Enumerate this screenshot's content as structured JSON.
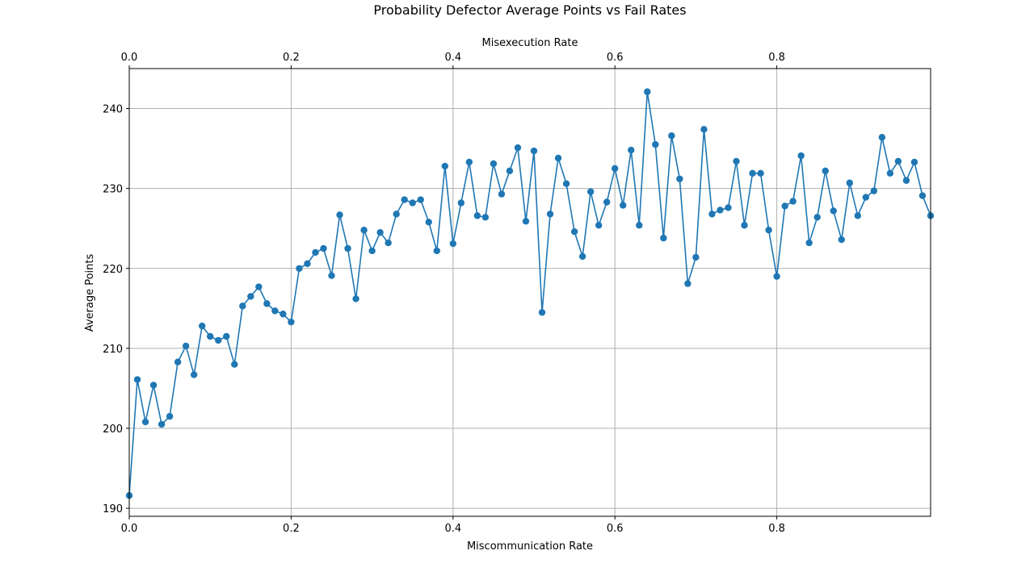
{
  "chart_data": {
    "type": "line",
    "title": "Probability Defector Average Points vs Fail Rates",
    "xlabel": "Miscommunication Rate",
    "x2label": "Misexecution Rate",
    "ylabel": "Average Points",
    "xlim": [
      0,
      0.99
    ],
    "ylim": [
      189,
      245
    ],
    "xticks": [
      "0.0",
      "0.2",
      "0.4",
      "0.6",
      "0.8"
    ],
    "x2ticks": [
      "0.0",
      "0.2",
      "0.4",
      "0.6",
      "0.8"
    ],
    "yticks": [
      "190",
      "200",
      "210",
      "220",
      "230",
      "240"
    ],
    "grid": true,
    "markers": true,
    "color": "#1f77b4",
    "x": [
      0.0,
      0.01,
      0.02,
      0.03,
      0.04,
      0.05,
      0.06,
      0.07,
      0.08,
      0.09,
      0.1,
      0.11,
      0.12,
      0.13,
      0.14,
      0.15,
      0.16,
      0.17,
      0.18,
      0.19,
      0.2,
      0.21,
      0.22,
      0.23,
      0.24,
      0.25,
      0.26,
      0.27,
      0.28,
      0.29,
      0.3,
      0.31,
      0.32,
      0.33,
      0.34,
      0.35,
      0.36,
      0.37,
      0.38,
      0.39,
      0.4,
      0.41,
      0.42,
      0.43,
      0.44,
      0.45,
      0.46,
      0.47,
      0.48,
      0.49,
      0.5,
      0.51,
      0.52,
      0.53,
      0.54,
      0.55,
      0.56,
      0.57,
      0.58,
      0.59,
      0.6,
      0.61,
      0.62,
      0.63,
      0.64,
      0.65,
      0.66,
      0.67,
      0.68,
      0.69,
      0.7,
      0.71,
      0.72,
      0.73,
      0.74,
      0.75,
      0.76,
      0.77,
      0.78,
      0.79,
      0.8,
      0.81,
      0.82,
      0.83,
      0.84,
      0.85,
      0.86,
      0.87,
      0.88,
      0.89,
      0.9,
      0.91,
      0.92,
      0.93,
      0.94,
      0.95,
      0.96,
      0.97,
      0.98,
      0.99
    ],
    "series": [
      {
        "values": [
          191.6,
          206.1,
          200.8,
          205.4,
          200.5,
          201.5,
          208.3,
          210.3,
          206.7,
          212.8,
          211.5,
          211.0,
          211.5,
          208.0,
          215.3,
          216.5,
          217.7,
          215.6,
          214.7,
          214.3,
          213.3,
          220.0,
          220.6,
          222.0,
          222.5,
          219.1,
          226.7,
          222.5,
          216.2,
          224.8,
          222.2,
          224.5,
          223.2,
          226.8,
          228.6,
          228.2,
          228.6,
          225.8,
          222.2,
          232.8,
          223.1,
          228.2,
          233.3,
          226.6,
          226.4,
          233.1,
          229.3,
          232.2,
          235.1,
          225.9,
          234.7,
          214.5,
          226.8,
          233.8,
          230.6,
          224.6,
          221.5,
          229.6,
          225.4,
          228.3,
          232.5,
          227.9,
          234.8,
          225.4,
          242.1,
          235.5,
          223.8,
          236.6,
          231.2,
          218.1,
          221.4,
          237.4,
          226.8,
          227.3,
          227.6,
          233.4,
          225.4,
          231.9,
          231.9,
          224.8,
          219.0,
          227.8,
          228.4,
          234.1,
          223.2,
          226.4,
          232.2,
          227.2,
          223.6,
          230.7,
          226.6,
          228.9,
          229.7,
          236.4,
          231.9,
          233.4,
          231.0,
          233.3,
          229.1,
          226.6
        ]
      }
    ]
  }
}
